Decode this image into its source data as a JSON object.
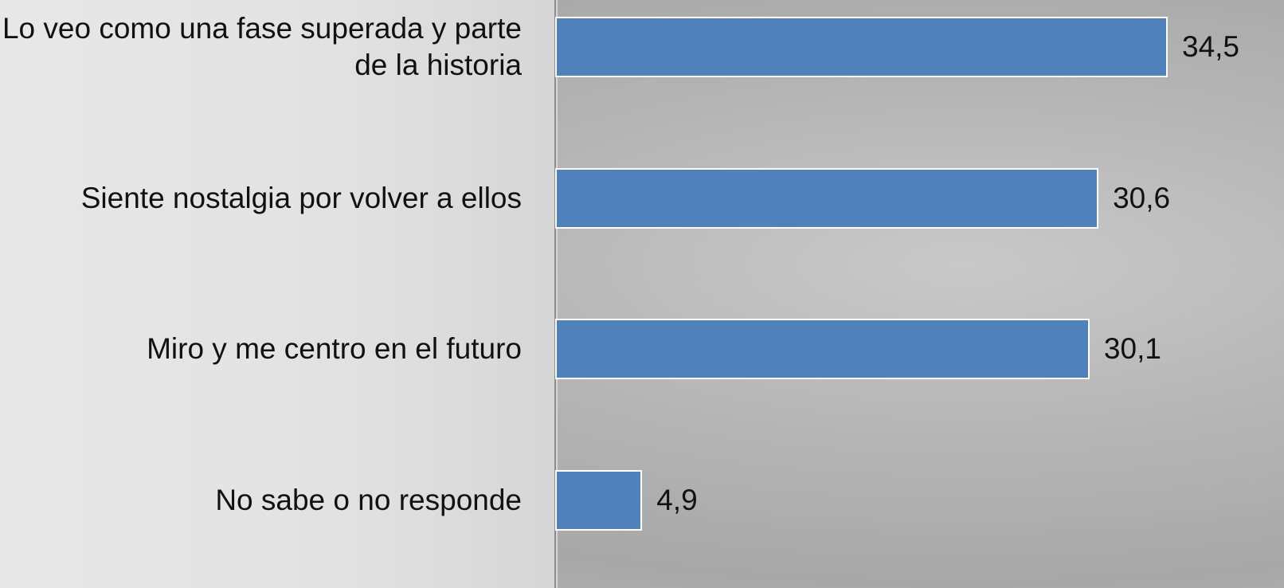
{
  "chart_data": {
    "type": "barh",
    "categories": [
      "Lo veo como una fase superada y parte de la historia",
      "Siente nostalgia por volver a ellos",
      "Miro y me centro en el futuro",
      "No sabe o no responde"
    ],
    "values": [
      34.5,
      30.6,
      30.1,
      4.9
    ],
    "value_labels": [
      "34,5",
      "30,6",
      "30,1",
      "4,9"
    ],
    "color": "#4f81bd"
  }
}
